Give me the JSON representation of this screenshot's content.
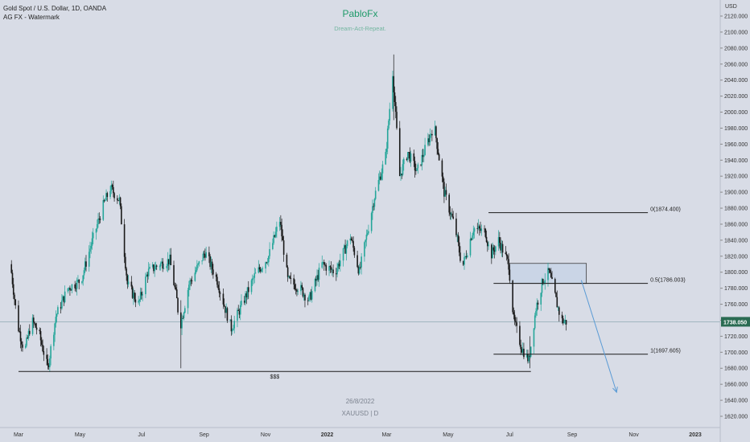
{
  "header": {
    "symbol_line": "Gold Spot / U.S. Dollar, 1D, OANDA",
    "indicator_line": "AG FX - Watermark"
  },
  "watermark": {
    "title": "PabloFx",
    "subtitle": "Dream-Act-Repeat.",
    "date": "26/8/2022",
    "symbol": "XAUUSD | D"
  },
  "colors": {
    "background": "#d8dce6",
    "bull": "#26a69a",
    "bear": "#1a1a1a",
    "price_badge": "#2a6b52",
    "current_line": "#7ea0a8",
    "box_fill": "#c4d2e6"
  },
  "chart_data": {
    "type": "candlestick",
    "currency_label": "USD",
    "ylim": [
      1610,
      2130
    ],
    "y_ticks": [
      1620,
      1640,
      1660,
      1680,
      1700,
      1720,
      1740,
      1760,
      1780,
      1800,
      1820,
      1840,
      1860,
      1880,
      1900,
      1920,
      1940,
      1960,
      1980,
      2000,
      2020,
      2040,
      2060,
      2080,
      2100,
      2120
    ],
    "x_ticks": [
      "Mar",
      "May",
      "Jul",
      "Sep",
      "Nov",
      "2022",
      "Mar",
      "May",
      "Jul",
      "Sep",
      "Nov",
      "2023"
    ],
    "x_tick_dates": [
      "2021-03-01",
      "2021-05-01",
      "2021-07-01",
      "2021-09-01",
      "2021-11-01",
      "2022-01-01",
      "2022-03-01",
      "2022-05-01",
      "2022-07-01",
      "2022-09-01",
      "2022-11-01",
      "2023-01-01"
    ],
    "current_price": 1738.05,
    "current_price_label": "1738.050",
    "price_path": [
      {
        "x": "2021-02-22",
        "y": 1810
      },
      {
        "x": "2021-03-01",
        "y": 1735
      },
      {
        "x": "2021-03-08",
        "y": 1700
      },
      {
        "x": "2021-03-15",
        "y": 1740
      },
      {
        "x": "2021-03-22",
        "y": 1725
      },
      {
        "x": "2021-03-31",
        "y": 1680
      },
      {
        "x": "2021-04-08",
        "y": 1745
      },
      {
        "x": "2021-04-20",
        "y": 1780
      },
      {
        "x": "2021-05-03",
        "y": 1790
      },
      {
        "x": "2021-05-12",
        "y": 1830
      },
      {
        "x": "2021-05-24",
        "y": 1880
      },
      {
        "x": "2021-06-01",
        "y": 1905
      },
      {
        "x": "2021-06-10",
        "y": 1890
      },
      {
        "x": "2021-06-18",
        "y": 1785
      },
      {
        "x": "2021-06-29",
        "y": 1760
      },
      {
        "x": "2021-07-08",
        "y": 1800
      },
      {
        "x": "2021-07-20",
        "y": 1810
      },
      {
        "x": "2021-07-30",
        "y": 1815
      },
      {
        "x": "2021-08-06",
        "y": 1765
      },
      {
        "x": "2021-08-09",
        "y": 1730
      },
      {
        "x": "2021-08-18",
        "y": 1785
      },
      {
        "x": "2021-09-03",
        "y": 1825
      },
      {
        "x": "2021-09-15",
        "y": 1790
      },
      {
        "x": "2021-09-24",
        "y": 1750
      },
      {
        "x": "2021-09-29",
        "y": 1730
      },
      {
        "x": "2021-10-08",
        "y": 1755
      },
      {
        "x": "2021-10-22",
        "y": 1795
      },
      {
        "x": "2021-11-05",
        "y": 1820
      },
      {
        "x": "2021-11-16",
        "y": 1865
      },
      {
        "x": "2021-11-24",
        "y": 1790
      },
      {
        "x": "2021-12-06",
        "y": 1780
      },
      {
        "x": "2021-12-15",
        "y": 1765
      },
      {
        "x": "2021-12-28",
        "y": 1810
      },
      {
        "x": "2022-01-10",
        "y": 1800
      },
      {
        "x": "2022-01-25",
        "y": 1845
      },
      {
        "x": "2022-02-03",
        "y": 1800
      },
      {
        "x": "2022-02-18",
        "y": 1895
      },
      {
        "x": "2022-03-01",
        "y": 1945
      },
      {
        "x": "2022-03-08",
        "y": 2050
      },
      {
        "x": "2022-03-15",
        "y": 1920
      },
      {
        "x": "2022-03-23",
        "y": 1950
      },
      {
        "x": "2022-04-01",
        "y": 1925
      },
      {
        "x": "2022-04-18",
        "y": 1985
      },
      {
        "x": "2022-04-28",
        "y": 1900
      },
      {
        "x": "2022-05-09",
        "y": 1855
      },
      {
        "x": "2022-05-16",
        "y": 1805
      },
      {
        "x": "2022-05-27",
        "y": 1855
      },
      {
        "x": "2022-06-08",
        "y": 1850
      },
      {
        "x": "2022-06-13",
        "y": 1820
      },
      {
        "x": "2022-06-21",
        "y": 1840
      },
      {
        "x": "2022-07-01",
        "y": 1810
      },
      {
        "x": "2022-07-06",
        "y": 1740
      },
      {
        "x": "2022-07-14",
        "y": 1705
      },
      {
        "x": "2022-07-21",
        "y": 1690
      },
      {
        "x": "2022-07-28",
        "y": 1755
      },
      {
        "x": "2022-08-04",
        "y": 1790
      },
      {
        "x": "2022-08-10",
        "y": 1800
      },
      {
        "x": "2022-08-15",
        "y": 1775
      },
      {
        "x": "2022-08-22",
        "y": 1740
      },
      {
        "x": "2022-08-26",
        "y": 1738
      }
    ],
    "wick_spikes": [
      {
        "x": "2021-08-09",
        "low": 1680,
        "high": 1765
      },
      {
        "x": "2022-03-08",
        "low": 1990,
        "high": 2072
      },
      {
        "x": "2022-07-21",
        "low": 1680,
        "high": 1720
      }
    ],
    "annotations": {
      "fib_levels": [
        {
          "label": "0(1874.400)",
          "value": 1874.4,
          "x_start": "2022-06-10",
          "x_end": "2022-11-15"
        },
        {
          "label": "0.5(1786.003)",
          "value": 1786.003,
          "x_start": "2022-06-15",
          "x_end": "2022-11-15"
        },
        {
          "label": "1(1697.605)",
          "value": 1697.605,
          "x_start": "2022-06-15",
          "x_end": "2022-11-15"
        }
      ],
      "zone_box": {
        "x_start": "2022-07-01",
        "x_end": "2022-09-15",
        "y_low": 1786,
        "y_high": 1811
      },
      "support_line": {
        "label": "$$$",
        "value": 1676,
        "x_start": "2021-03-01",
        "x_end": "2022-07-22"
      },
      "projection_arrow": {
        "from": {
          "x": "2022-09-10",
          "y": 1790
        },
        "to": {
          "x": "2022-10-15",
          "y": 1650
        }
      }
    }
  }
}
